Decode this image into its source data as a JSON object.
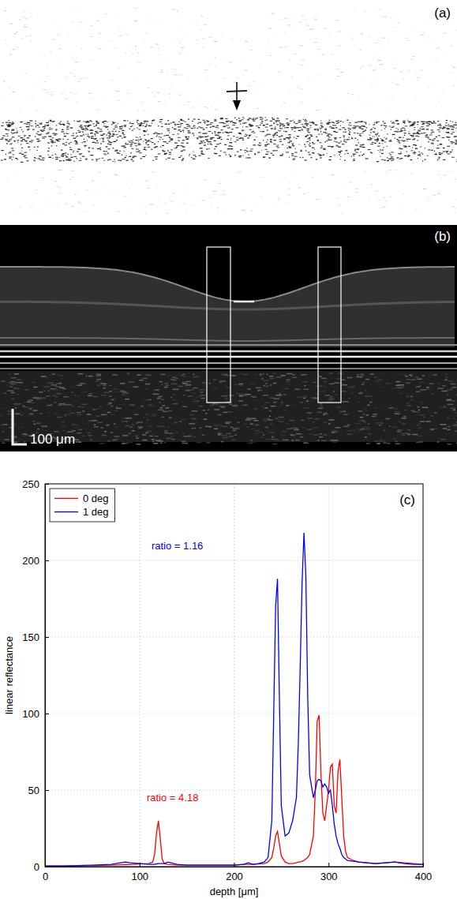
{
  "image_panels": [
    {
      "letter": "(a)"
    },
    {
      "letter": "(b)",
      "scale_bar_label": "100 μm"
    }
  ],
  "chart_data": {
    "type": "line",
    "title": "(c)",
    "x_label": "depth [μm]",
    "y_label": "linear reflectance",
    "x": [
      0,
      10,
      20,
      30,
      40,
      50,
      60,
      70,
      80,
      85,
      90,
      100,
      110,
      114,
      116,
      118,
      120,
      122,
      124,
      126,
      130,
      140,
      150,
      160,
      170,
      180,
      190,
      200,
      210,
      215,
      220,
      226,
      232,
      236,
      240,
      242,
      244,
      246,
      248,
      250,
      254,
      258,
      262,
      266,
      268,
      270,
      272,
      274,
      276,
      278,
      280,
      284,
      286,
      288,
      290,
      292,
      294,
      296,
      298,
      300,
      302,
      304,
      306,
      308,
      310,
      312,
      314,
      316,
      318,
      320,
      326,
      332,
      340,
      350,
      360,
      370,
      380,
      390,
      400
    ],
    "series": [
      {
        "name": "0 deg",
        "color": "#ff0000",
        "values": [
          0.5,
          0.5,
          0.5,
          0.6,
          0.6,
          0.7,
          0.8,
          1,
          1.2,
          1.3,
          1.4,
          1.8,
          2,
          3,
          8,
          22,
          30,
          18,
          5,
          2,
          1.5,
          1,
          1,
          1,
          1,
          1,
          1,
          1,
          1.5,
          1.5,
          1.5,
          1.8,
          2,
          3,
          6,
          12,
          20,
          23,
          15,
          7,
          3,
          2,
          2,
          2.5,
          3,
          3,
          3.5,
          4,
          5,
          6,
          8,
          20,
          50,
          95,
          99,
          60,
          35,
          30,
          40,
          50,
          65,
          67,
          40,
          35,
          62,
          70,
          45,
          20,
          10,
          6,
          4,
          3,
          2.5,
          2,
          2.5,
          3,
          2.5,
          2,
          1.5
        ]
      },
      {
        "name": "1 deg",
        "color": "#0000ff",
        "values": [
          0.5,
          0.5,
          0.5,
          0.6,
          0.8,
          1,
          1.2,
          1.5,
          2.5,
          3,
          2.5,
          2,
          1.5,
          1.5,
          1.5,
          1.8,
          2,
          2,
          2,
          2,
          3,
          1.5,
          1,
          1,
          1,
          1,
          1,
          1,
          1.5,
          2.5,
          1.5,
          2,
          3,
          6,
          30,
          100,
          170,
          188,
          110,
          40,
          20,
          22,
          30,
          45,
          80,
          130,
          185,
          218,
          190,
          110,
          60,
          45,
          50,
          56,
          57,
          56,
          52,
          54,
          52,
          48,
          50,
          40,
          28,
          20,
          15,
          12,
          8,
          6,
          5,
          4,
          3.5,
          3,
          2.5,
          2,
          2.5,
          3,
          2,
          1.5,
          1.5
        ]
      }
    ],
    "annotations": [
      {
        "text": "ratio = 1.16",
        "x": 140,
        "y": 207,
        "color": "#0000ff"
      },
      {
        "text": "ratio = 4.18",
        "x": 135,
        "y": 43,
        "color": "#ff0000"
      }
    ],
    "xlim": [
      0,
      400
    ],
    "xticks": [
      0,
      100,
      200,
      300,
      400
    ],
    "ylim": [
      0,
      250
    ],
    "yticks": [
      0,
      50,
      100,
      150,
      200,
      250
    ],
    "grid": true,
    "legend": "upper-left"
  }
}
